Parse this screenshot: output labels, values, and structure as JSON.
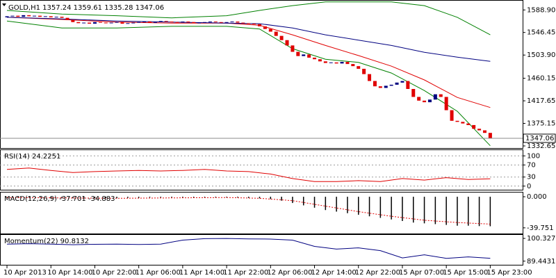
{
  "chart_data": [
    {
      "type": "candlestick",
      "title": "GOLD,H1  1357.24 1359.61 1335.28 1347.06",
      "bull_color": "#000080",
      "bear_color": "#e00000",
      "open": [
        1575,
        1577,
        1578,
        1576,
        1579,
        1577,
        1578,
        1576,
        1577,
        1575,
        1576,
        1574,
        1570,
        1566,
        1564,
        1565,
        1563,
        1566,
        1565,
        1564,
        1565,
        1566,
        1563,
        1564,
        1565,
        1566,
        1567,
        1565,
        1566,
        1568,
        1567,
        1566,
        1565,
        1567,
        1566,
        1564,
        1565,
        1566,
        1567,
        1566,
        1565,
        1566,
        1567,
        1565,
        1564,
        1563,
        1562,
        1558,
        1553,
        1548,
        1540,
        1532,
        1522,
        1510,
        1502,
        1505,
        1499,
        1496,
        1492,
        1489,
        1490,
        1488,
        1491,
        1487,
        1483,
        1478,
        1468,
        1455,
        1445,
        1442,
        1446,
        1448,
        1452,
        1455,
        1440,
        1425,
        1418,
        1415,
        1420,
        1430,
        1425,
        1400,
        1380,
        1378,
        1375,
        1372,
        1365,
        1362,
        1357.24
      ],
      "close": [
        1577,
        1578,
        1576,
        1579,
        1577,
        1578,
        1576,
        1577,
        1575,
        1576,
        1574,
        1570,
        1566,
        1564,
        1565,
        1563,
        1566,
        1565,
        1564,
        1565,
        1566,
        1563,
        1564,
        1565,
        1566,
        1567,
        1565,
        1566,
        1568,
        1567,
        1566,
        1565,
        1567,
        1566,
        1564,
        1565,
        1566,
        1567,
        1566,
        1565,
        1566,
        1567,
        1565,
        1564,
        1563,
        1562,
        1558,
        1553,
        1548,
        1540,
        1532,
        1522,
        1510,
        1502,
        1505,
        1499,
        1496,
        1492,
        1489,
        1490,
        1488,
        1491,
        1487,
        1483,
        1478,
        1468,
        1455,
        1445,
        1442,
        1446,
        1448,
        1452,
        1455,
        1440,
        1425,
        1418,
        1415,
        1420,
        1430,
        1425,
        1400,
        1380,
        1378,
        1375,
        1372,
        1365,
        1362,
        1357.24,
        1347.06
      ],
      "series": [
        {
          "color": "#008000",
          "x": [
            0,
            10,
            20,
            30,
            40,
            46,
            52,
            58,
            64,
            70,
            76,
            82,
            88
          ],
          "values": [
            1588,
            1581,
            1578,
            1574,
            1578,
            1588,
            1597,
            1604,
            1604,
            1604,
            1597,
            1575,
            1542
          ]
        },
        {
          "color": "#008000",
          "x": [
            0,
            10,
            20,
            30,
            40,
            46,
            52,
            58,
            64,
            70,
            76,
            82,
            88
          ],
          "values": [
            1568,
            1555,
            1555,
            1558,
            1558,
            1553,
            1516,
            1496,
            1490,
            1470,
            1437,
            1398,
            1333
          ]
        },
        {
          "color": "#e00000",
          "x": [
            0,
            10,
            20,
            30,
            40,
            46,
            52,
            58,
            64,
            70,
            76,
            82,
            88
          ],
          "values": [
            1575,
            1571,
            1566,
            1564,
            1564,
            1560,
            1542,
            1522,
            1503,
            1483,
            1457,
            1424,
            1405
          ]
        },
        {
          "color": "#000080",
          "x": [
            0,
            10,
            20,
            30,
            40,
            46,
            52,
            58,
            64,
            70,
            76,
            82,
            88
          ],
          "values": [
            1575,
            1572,
            1568,
            1566,
            1564,
            1563,
            1555,
            1542,
            1532,
            1522,
            1509,
            1500,
            1492
          ]
        }
      ],
      "last_price": 1347.06,
      "xlim": [
        -1.27,
        93.9
      ],
      "ylim": [
        1330,
        1605
      ],
      "yticks": [
        {
          "value": 1588.9,
          "label": "1588.90"
        },
        1546.45,
        {
          "value": 1503.9,
          "label": "1503.90"
        },
        1460.15,
        1417.65,
        1375.15,
        1332.65
      ]
    },
    {
      "type": "line",
      "title": "RSI(14) 24.2251",
      "grid": true,
      "series": [
        {
          "color": "#e00000",
          "x": [
            0,
            4,
            8,
            12,
            16,
            20,
            24,
            28,
            32,
            36,
            40,
            44,
            48,
            52,
            56,
            60,
            64,
            68,
            72,
            76,
            80,
            84,
            88
          ],
          "values": [
            55,
            60,
            52,
            45,
            48,
            50,
            52,
            50,
            52,
            55,
            50,
            48,
            40,
            25,
            15,
            15,
            18,
            15,
            25,
            20,
            28,
            22,
            24.2251
          ]
        }
      ],
      "xlim": [
        -1.27,
        93.9
      ],
      "ylim": [
        -12,
        119
      ],
      "yticks": [
        100,
        70,
        30,
        0
      ]
    },
    {
      "type": "bar",
      "title": "MACD(12,26,9) -37.701 -34.883",
      "color": "#000000",
      "x": [
        0,
        2,
        4,
        6,
        8,
        10,
        12,
        14,
        16,
        18,
        20,
        22,
        24,
        26,
        28,
        30,
        32,
        34,
        36,
        38,
        40,
        42,
        44,
        46,
        48,
        50,
        52,
        54,
        56,
        58,
        60,
        62,
        64,
        66,
        68,
        70,
        72,
        74,
        76,
        78,
        80,
        82,
        84,
        86,
        88
      ],
      "values": [
        -1,
        -1.5,
        -1,
        -1,
        -1.5,
        -2,
        -2,
        -2.5,
        -2,
        -2,
        -2,
        -1.5,
        -1.5,
        -1,
        -1,
        -1,
        -1,
        -1,
        -1,
        -1,
        -1,
        -1,
        -1.5,
        -2,
        -3,
        -5,
        -8,
        -11,
        -14,
        -17,
        -19,
        -21,
        -23,
        -25,
        -27,
        -29,
        -31,
        -33,
        -34,
        -35,
        -36,
        -37,
        -37,
        -37.5,
        -37.701
      ],
      "series": [
        {
          "color": "#e00000",
          "x": [
            0,
            20,
            40,
            46,
            52,
            58,
            64,
            70,
            76,
            82,
            88
          ],
          "values": [
            -1,
            -2,
            -1,
            -2,
            -5,
            -12,
            -19,
            -25,
            -30,
            -33,
            -34.883
          ]
        }
      ],
      "xlim": [
        -1.27,
        93.9
      ],
      "ylim": [
        -47,
        5.4
      ],
      "yticks": [
        {
          "value": 0,
          "label": "0.000"
        },
        -39.751
      ]
    },
    {
      "type": "line",
      "title": "Momentum(22) 90.8132",
      "series": [
        {
          "color": "#000080",
          "x": [
            0,
            4,
            8,
            12,
            16,
            20,
            24,
            28,
            32,
            36,
            40,
            44,
            48,
            52,
            56,
            60,
            64,
            68,
            72,
            76,
            80,
            84,
            88
          ],
          "values": [
            97.6,
            97.8,
            97.6,
            97.3,
            97.5,
            97.6,
            97.4,
            97.6,
            99.5,
            100.2,
            100.3,
            100.1,
            100,
            99.5,
            96.5,
            95.2,
            95.8,
            94.5,
            91,
            92.5,
            90.8,
            91.5,
            90.8132
          ]
        }
      ],
      "xlim": [
        -1.27,
        93.9
      ],
      "ylim": [
        87.7,
        102.0
      ],
      "yticks": [
        100.327,
        89.4431
      ],
      "xticks": [
        {
          "value": 0,
          "label": "10 Apr 2013"
        },
        {
          "value": 8,
          "label": "10 Apr 14:00"
        },
        {
          "value": 16,
          "label": "10 Apr 22:00"
        },
        {
          "value": 24,
          "label": "11 Apr 06:00"
        },
        {
          "value": 32,
          "label": "11 Apr 14:00"
        },
        {
          "value": 40,
          "label": "11 Apr 22:00"
        },
        {
          "value": 48,
          "label": "12 Apr 06:00"
        },
        {
          "value": 56,
          "label": "12 Apr 14:00"
        },
        {
          "value": 64,
          "label": "12 Apr 22:00"
        },
        {
          "value": 72,
          "label": "15 Apr 07:00"
        },
        {
          "value": 80,
          "label": "15 Apr 15:00"
        },
        {
          "value": 88,
          "label": "15 Apr 23:00"
        }
      ]
    }
  ]
}
